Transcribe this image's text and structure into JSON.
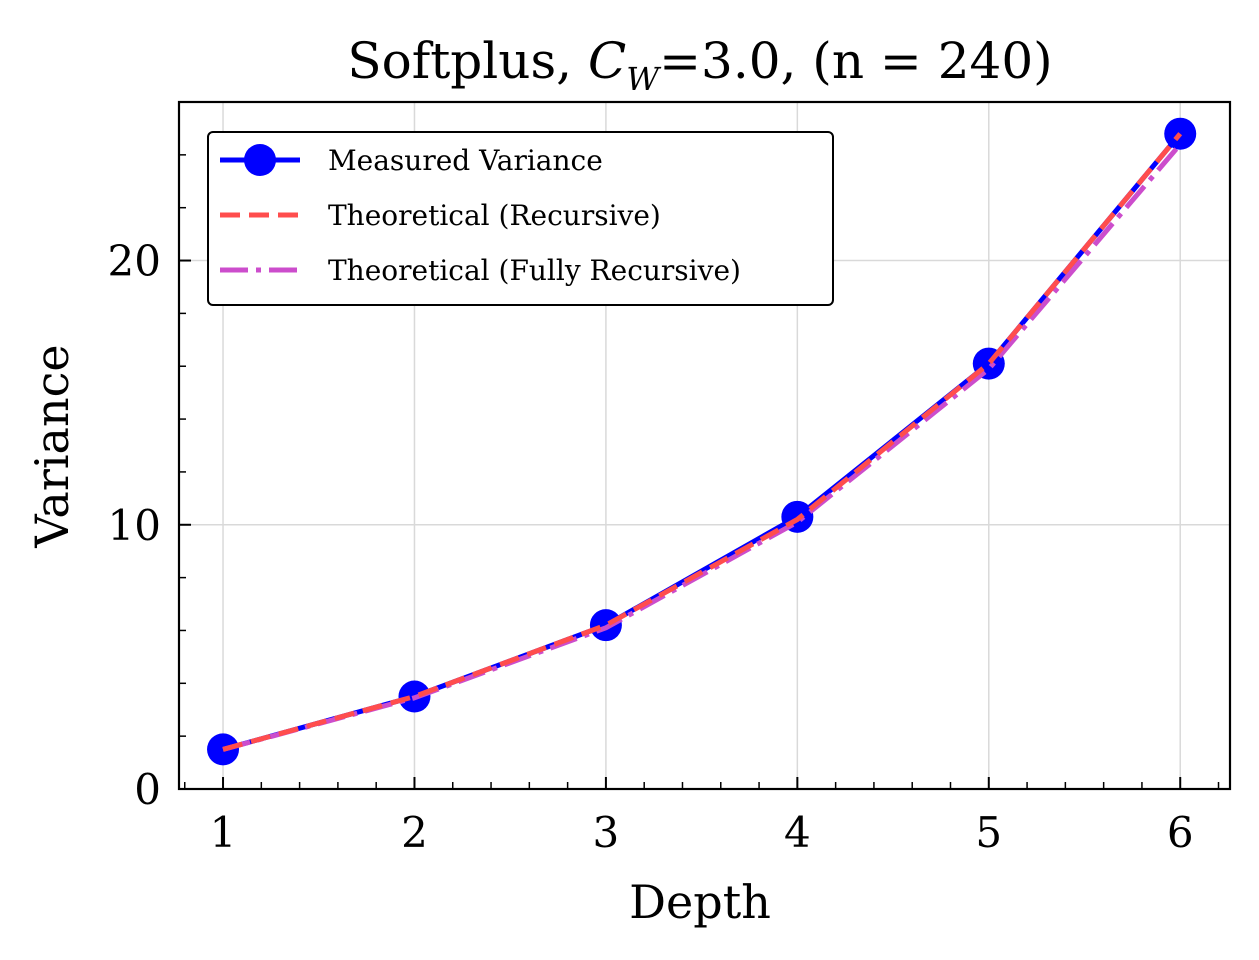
{
  "chart_data": {
    "type": "line",
    "title_prefix": "Softplus, ",
    "title_cw_symbol": "C",
    "title_cw_sub": "W",
    "title_suffix": "=3.0, (n = 240)",
    "xlabel": "Depth",
    "ylabel": "Variance",
    "x": [
      1,
      2,
      3,
      4,
      5,
      6
    ],
    "xlim": [
      0.77,
      6.26
    ],
    "ylim": [
      0,
      26
    ],
    "xticks": [
      "1",
      "2",
      "3",
      "4",
      "5",
      "6"
    ],
    "yticks": [
      "0",
      "10",
      "20"
    ],
    "ytick_values": [
      0,
      10,
      20
    ],
    "grid": true,
    "legend_position": "top-left",
    "series": [
      {
        "name": "Measured Variance",
        "values": [
          1.5,
          3.5,
          6.2,
          10.3,
          16.1,
          24.8
        ],
        "color": "#0000ff",
        "style": "solid-marker"
      },
      {
        "name": "Theoretical (Recursive)",
        "values": [
          1.5,
          3.5,
          6.2,
          10.2,
          16.1,
          24.8
        ],
        "color": "#ff4d4d",
        "style": "dashed"
      },
      {
        "name": "Theoretical (Fully Recursive)",
        "values": [
          1.5,
          3.45,
          6.1,
          10.1,
          15.9,
          24.4
        ],
        "color": "#cc4dcc",
        "style": "dashdot"
      }
    ]
  }
}
